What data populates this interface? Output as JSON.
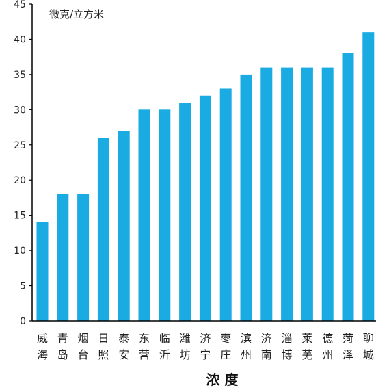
{
  "chart_data": {
    "type": "bar",
    "ylabel": "微克/立方米",
    "xlabel": "浓 度",
    "ylim": [
      0,
      45
    ],
    "yticks": [
      0,
      5,
      10,
      15,
      20,
      25,
      30,
      35,
      40,
      45
    ],
    "grid": false,
    "bar_color": "#1aabe3",
    "categories": [
      [
        "威",
        "海"
      ],
      [
        "青",
        "岛"
      ],
      [
        "烟",
        "台"
      ],
      [
        "日",
        "照"
      ],
      [
        "泰",
        "安"
      ],
      [
        "东",
        "营"
      ],
      [
        "临",
        "沂"
      ],
      [
        "潍",
        "坊"
      ],
      [
        "济",
        "宁"
      ],
      [
        "枣",
        "庄"
      ],
      [
        "滨",
        "州"
      ],
      [
        "济",
        "南"
      ],
      [
        "淄",
        "博"
      ],
      [
        "莱",
        "芜"
      ],
      [
        "德",
        "州"
      ],
      [
        "菏",
        "泽"
      ],
      [
        "聊",
        "城"
      ]
    ],
    "values": [
      14,
      18,
      18,
      26,
      27,
      30,
      30,
      31,
      32,
      33,
      35,
      36,
      36,
      36,
      36,
      38,
      41
    ]
  }
}
